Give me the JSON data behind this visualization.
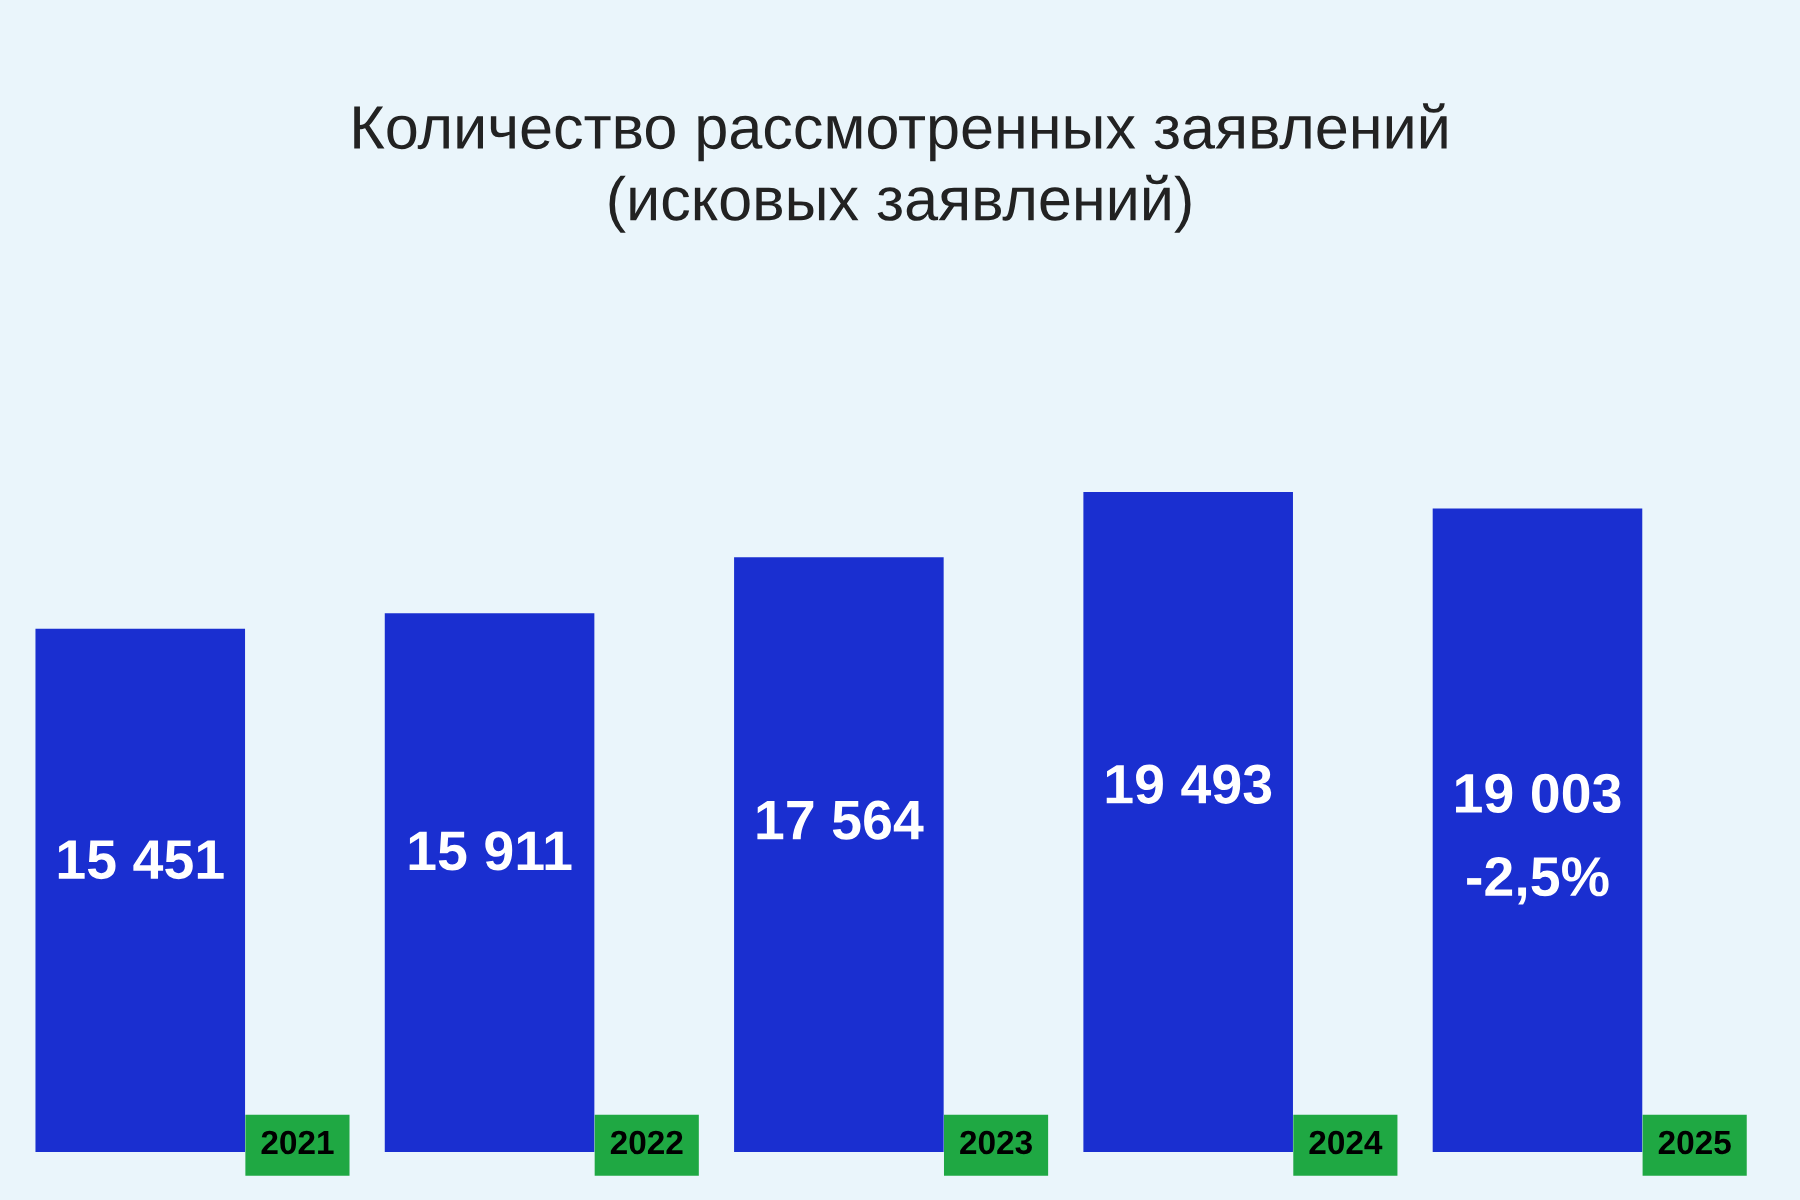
{
  "chart_data": {
    "type": "bar",
    "title": "Количество рассмотренных заявлений\n(исковых заявлений)",
    "categories": [
      "2021",
      "2022",
      "2023",
      "2024",
      "2025"
    ],
    "values": [
      15451,
      15911,
      17564,
      19493,
      19003
    ],
    "color": "#1a2fd0",
    "value_labels": [
      "15 451",
      "15 911",
      "17 564",
      "19 493",
      "19 003"
    ],
    "annotations": [
      "-2,5%"
    ],
    "grid": false,
    "legend": false,
    "tick_labels": "x"
  }
}
